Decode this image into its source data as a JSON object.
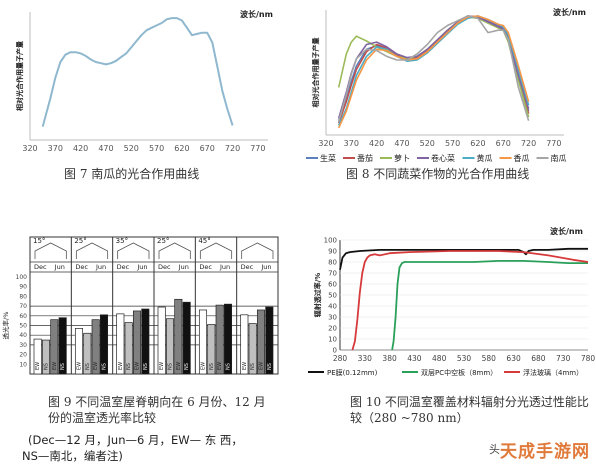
{
  "chart_data": [
    {
      "type": "line",
      "title": "图 7 南瓜的光合作用曲线",
      "xlabel": "",
      "ylabel": "相对光合作用量子产量",
      "unit_label": "波长/nm",
      "xlim": [
        320,
        790
      ],
      "ylim": [
        0,
        1.05
      ],
      "xticks": [
        "320",
        "370",
        "420",
        "470",
        "520",
        "570",
        "620",
        "670",
        "720",
        "770"
      ],
      "series": [
        {
          "color": "#8fb8cf",
          "x": [
            345,
            360,
            370,
            380,
            390,
            400,
            410,
            420,
            430,
            440,
            450,
            460,
            470,
            480,
            490,
            500,
            510,
            520,
            530,
            540,
            550,
            560,
            570,
            580,
            590,
            600,
            610,
            620,
            630,
            640,
            650,
            660,
            670,
            680,
            690,
            700,
            710,
            720
          ],
          "y": [
            0.11,
            0.34,
            0.51,
            0.64,
            0.7,
            0.72,
            0.72,
            0.71,
            0.69,
            0.66,
            0.64,
            0.63,
            0.62,
            0.63,
            0.65,
            0.68,
            0.71,
            0.76,
            0.81,
            0.86,
            0.9,
            0.92,
            0.94,
            0.96,
            0.99,
            1.0,
            1.0,
            0.98,
            0.92,
            0.86,
            0.87,
            0.88,
            0.88,
            0.8,
            0.6,
            0.4,
            0.25,
            0.12
          ]
        }
      ]
    },
    {
      "type": "line",
      "title": "图 8 不同蔬菜作物的光合作用曲线",
      "xlabel": "",
      "ylabel": "相对光合作用量子产量",
      "unit_label": "波长/nm",
      "xlim": [
        320,
        790
      ],
      "ylim": [
        0,
        1.05
      ],
      "xticks": [
        "320",
        "370",
        "420",
        "470",
        "520",
        "570",
        "620",
        "670",
        "720",
        "770"
      ],
      "series": [
        {
          "name": "生菜",
          "color": "#5b7fbf",
          "x": [
            345,
            360,
            370,
            380,
            400,
            420,
            440,
            460,
            480,
            500,
            520,
            540,
            560,
            580,
            600,
            620,
            640,
            660,
            670,
            680,
            700,
            720
          ],
          "y": [
            0.12,
            0.3,
            0.45,
            0.58,
            0.72,
            0.75,
            0.72,
            0.66,
            0.63,
            0.64,
            0.7,
            0.78,
            0.86,
            0.94,
            0.99,
            1.0,
            0.96,
            0.92,
            0.9,
            0.82,
            0.5,
            0.2
          ]
        },
        {
          "name": "番茄",
          "color": "#c0504d",
          "x": [
            345,
            360,
            370,
            380,
            400,
            420,
            440,
            460,
            480,
            500,
            520,
            540,
            560,
            580,
            600,
            620,
            640,
            660,
            670,
            680,
            700,
            720
          ],
          "y": [
            0.1,
            0.28,
            0.42,
            0.55,
            0.7,
            0.76,
            0.73,
            0.67,
            0.64,
            0.65,
            0.71,
            0.79,
            0.87,
            0.95,
            1.0,
            0.99,
            0.95,
            0.91,
            0.89,
            0.8,
            0.48,
            0.18
          ]
        },
        {
          "name": "萝卜",
          "color": "#9bbb59",
          "x": [
            345,
            360,
            370,
            380,
            400,
            420,
            440,
            460,
            480,
            500,
            520,
            540,
            560,
            580,
            600,
            620,
            640,
            660,
            670,
            680,
            700,
            720
          ],
          "y": [
            0.4,
            0.68,
            0.78,
            0.83,
            0.79,
            0.74,
            0.7,
            0.66,
            0.64,
            0.66,
            0.72,
            0.8,
            0.88,
            0.95,
            0.99,
            0.98,
            0.94,
            0.9,
            0.88,
            0.78,
            0.46,
            0.15
          ]
        },
        {
          "name": "卷心菜",
          "color": "#8064a2",
          "x": [
            345,
            360,
            370,
            380,
            400,
            420,
            440,
            460,
            480,
            500,
            520,
            540,
            560,
            580,
            600,
            620,
            640,
            660,
            670,
            680,
            700,
            720
          ],
          "y": [
            0.14,
            0.36,
            0.52,
            0.64,
            0.76,
            0.78,
            0.74,
            0.68,
            0.65,
            0.66,
            0.72,
            0.8,
            0.88,
            0.95,
            1.0,
            0.99,
            0.95,
            0.91,
            0.89,
            0.8,
            0.5,
            0.22
          ]
        },
        {
          "name": "黄瓜",
          "color": "#4bacc6",
          "x": [
            345,
            360,
            370,
            380,
            400,
            420,
            440,
            460,
            480,
            500,
            520,
            540,
            560,
            580,
            600,
            620,
            640,
            660,
            670,
            680,
            700,
            720
          ],
          "y": [
            0.08,
            0.22,
            0.36,
            0.5,
            0.66,
            0.74,
            0.72,
            0.66,
            0.62,
            0.63,
            0.69,
            0.77,
            0.85,
            0.93,
            0.98,
            1.0,
            0.97,
            0.93,
            0.91,
            0.84,
            0.55,
            0.25
          ]
        },
        {
          "name": "香瓜",
          "color": "#f79646",
          "x": [
            345,
            360,
            370,
            380,
            400,
            420,
            440,
            460,
            480,
            500,
            520,
            540,
            560,
            580,
            600,
            620,
            640,
            660,
            670,
            680,
            700,
            720
          ],
          "y": [
            0.06,
            0.2,
            0.33,
            0.46,
            0.63,
            0.72,
            0.71,
            0.66,
            0.63,
            0.64,
            0.7,
            0.78,
            0.86,
            0.94,
            0.99,
            1.0,
            0.97,
            0.93,
            0.92,
            0.86,
            0.58,
            0.28
          ]
        },
        {
          "name": "南瓜",
          "color": "#a5a5a5",
          "x": [
            345,
            360,
            370,
            380,
            400,
            420,
            440,
            460,
            480,
            500,
            520,
            540,
            560,
            580,
            600,
            620,
            640,
            660,
            670,
            680,
            700,
            720
          ],
          "y": [
            0.11,
            0.34,
            0.51,
            0.64,
            0.72,
            0.71,
            0.66,
            0.63,
            0.63,
            0.68,
            0.76,
            0.86,
            0.92,
            0.96,
            1.0,
            0.98,
            0.86,
            0.88,
            0.88,
            0.8,
            0.4,
            0.12
          ]
        }
      ]
    },
    {
      "type": "bar",
      "title": "图 9 不同温室屋脊朝向在 6 月份、12 月份的温室透光率比较",
      "ylabel": "透光率/%",
      "ylim": [
        0,
        100
      ],
      "yticks": [
        "10",
        "20",
        "30",
        "40",
        "50",
        "60",
        "70",
        "80",
        "90",
        "100"
      ],
      "angles": [
        "15°",
        "25°",
        "35°",
        "25°",
        "45°"
      ],
      "month_labels": [
        "Dec",
        "Jun"
      ],
      "orient_labels": [
        "EW",
        "NS"
      ],
      "groups": [
        {
          "angle": "15°",
          "values": [
            36,
            35,
            56,
            58
          ]
        },
        {
          "angle": "25°",
          "values": [
            47,
            42,
            56,
            61
          ]
        },
        {
          "angle": "35°",
          "values": [
            62,
            53,
            65,
            67
          ]
        },
        {
          "angle": "25°",
          "values": [
            69,
            57,
            77,
            74
          ]
        },
        {
          "angle": "45°",
          "values": [
            66,
            51,
            71,
            72
          ]
        },
        {
          "angle": "",
          "values": [
            61,
            52,
            66,
            69
          ]
        }
      ],
      "bar_colors": [
        "#ffffff",
        "#bfbfbf",
        "#808080",
        "#111111"
      ]
    },
    {
      "type": "line",
      "title": "图 10 不同温室覆盖材料辐射分光透过性能比较（280 ~780 nm）",
      "xlabel": "",
      "ylabel": "辐射透过率/%",
      "unit_label": "波长/nm",
      "xlim": [
        280,
        780
      ],
      "ylim": [
        0,
        100
      ],
      "xticks": [
        "280",
        "330",
        "380",
        "430",
        "480",
        "530",
        "580",
        "630",
        "680",
        "730",
        "780"
      ],
      "yticks": [
        "0",
        "10",
        "20",
        "30",
        "40",
        "50",
        "60",
        "70",
        "80",
        "90",
        "100"
      ],
      "series": [
        {
          "name": "PE膜(0.12mm)",
          "color": "#111111",
          "x": [
            280,
            285,
            292,
            300,
            320,
            360,
            400,
            450,
            500,
            550,
            600,
            640,
            650,
            655,
            660,
            670,
            700,
            740,
            780
          ],
          "y": [
            73,
            84,
            88,
            89,
            90,
            91,
            91,
            91,
            91,
            91,
            91,
            91,
            89,
            87,
            90,
            91,
            91,
            92,
            92
          ]
        },
        {
          "name": "双层PC中空板（8mm）",
          "color": "#2aa05a",
          "x": [
            385,
            388,
            392,
            396,
            400,
            405,
            410,
            420,
            450,
            500,
            550,
            600,
            650,
            700,
            740,
            780
          ],
          "y": [
            0,
            8,
            30,
            60,
            75,
            79,
            80,
            80,
            80,
            80,
            80,
            81,
            81,
            80,
            79,
            79
          ]
        },
        {
          "name": "浮法玻璃（4mm）",
          "color": "#d63a3a",
          "x": [
            305,
            310,
            315,
            320,
            325,
            330,
            335,
            340,
            350,
            360,
            380,
            420,
            500,
            600,
            650,
            700,
            750,
            780
          ],
          "y": [
            0,
            8,
            28,
            52,
            70,
            80,
            84,
            86,
            87,
            86,
            88,
            89,
            90,
            90,
            89,
            86,
            82,
            80
          ]
        }
      ]
    }
  ],
  "note": {
    "line1": "(Dec—12 月，Jun—6 月，EW—  东  西，",
    "line2": "NS—南北，编者注)"
  },
  "source_tag": "头",
  "watermark": "天成手游网"
}
